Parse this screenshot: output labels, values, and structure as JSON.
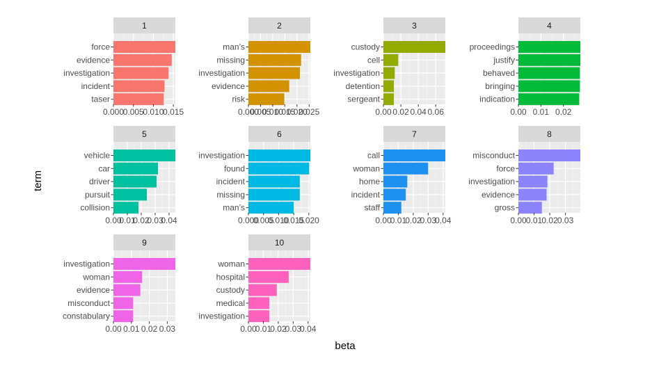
{
  "chart_data": {
    "type": "bar",
    "orientation": "horizontal",
    "layout": "facet_wrap 4 columns",
    "xlabel": "beta",
    "ylabel": "term",
    "grid": true,
    "legend": "none",
    "panels": [
      {
        "title": "1",
        "color": "#F8766D",
        "xlim": [
          0,
          0.0155
        ],
        "x_ticks": [
          0,
          0.005,
          0.01,
          0.015
        ],
        "x_tick_labels": [
          "0.000",
          "0.005",
          "0.010",
          "0.015"
        ],
        "terms": [
          "force",
          "evidence",
          "investigation",
          "incident",
          "taser"
        ],
        "values": [
          0.0155,
          0.0146,
          0.0138,
          0.0128,
          0.0126
        ]
      },
      {
        "title": "2",
        "color": "#D39200",
        "xlim": [
          0,
          0.0255
        ],
        "x_ticks": [
          0,
          0.005,
          0.01,
          0.015,
          0.02,
          0.025
        ],
        "x_tick_labels": [
          "0.000",
          "0.005",
          "0.010",
          "0.015",
          "0.020",
          "0.025"
        ],
        "terms": [
          "man’s",
          "missing",
          "investigation",
          "evidence",
          "risk"
        ],
        "values": [
          0.0258,
          0.0217,
          0.0212,
          0.0168,
          0.0148
        ]
      },
      {
        "title": "3",
        "color": "#93AA00",
        "xlim": [
          0,
          0.071
        ],
        "x_ticks": [
          0,
          0.02,
          0.04,
          0.06
        ],
        "x_tick_labels": [
          "0.00",
          "0.02",
          "0.04",
          "0.06"
        ],
        "terms": [
          "custody",
          "cell",
          "investigation",
          "detention",
          "sergeant"
        ],
        "values": [
          0.072,
          0.017,
          0.013,
          0.012,
          0.012
        ]
      },
      {
        "title": "4",
        "color": "#00BA38",
        "xlim": [
          0,
          0.0275
        ],
        "x_ticks": [
          0,
          0.01,
          0.02
        ],
        "x_tick_labels": [
          "0.00",
          "0.01",
          "0.02"
        ],
        "terms": [
          "proceedings",
          "justify",
          "behaved",
          "bringing",
          "indication"
        ],
        "values": [
          0.0277,
          0.0275,
          0.0273,
          0.0273,
          0.027
        ]
      },
      {
        "title": "5",
        "color": "#00C19F",
        "xlim": [
          0,
          0.0445
        ],
        "x_ticks": [
          0,
          0.01,
          0.02,
          0.03,
          0.04
        ],
        "x_tick_labels": [
          "0.00",
          "0.01",
          "0.02",
          "0.03",
          "0.04"
        ],
        "terms": [
          "vehicle",
          "car",
          "driver",
          "pursuit",
          "collision"
        ],
        "values": [
          0.045,
          0.032,
          0.031,
          0.024,
          0.018
        ]
      },
      {
        "title": "6",
        "color": "#00B9E3",
        "xlim": [
          0,
          0.0205
        ],
        "x_ticks": [
          0,
          0.005,
          0.01,
          0.015,
          0.02
        ],
        "x_tick_labels": [
          "0.000",
          "0.005",
          "0.010",
          "0.015",
          "0.020"
        ],
        "terms": [
          "investigation",
          "found",
          "incident",
          "missing",
          "man’s"
        ],
        "values": [
          0.0208,
          0.0201,
          0.017,
          0.017,
          0.015
        ]
      },
      {
        "title": "7",
        "color": "#1E90F0",
        "xlim": [
          0,
          0.0415
        ],
        "x_ticks": [
          0,
          0.01,
          0.02,
          0.03,
          0.04
        ],
        "x_tick_labels": [
          "0.00",
          "0.01",
          "0.02",
          "0.03",
          "0.04"
        ],
        "terms": [
          "call",
          "woman",
          "home",
          "incident",
          "staff"
        ],
        "values": [
          0.0415,
          0.03,
          0.016,
          0.015,
          0.012
        ]
      },
      {
        "title": "8",
        "color": "#8B84FC",
        "xlim": [
          0,
          0.0395
        ],
        "x_ticks": [
          0,
          0.01,
          0.02,
          0.03
        ],
        "x_tick_labels": [
          "0.00",
          "0.01",
          "0.02",
          "0.03"
        ],
        "terms": [
          "misconduct",
          "force",
          "investigation",
          "evidence",
          "gross"
        ],
        "values": [
          0.04,
          0.0225,
          0.0185,
          0.018,
          0.015
        ]
      },
      {
        "title": "9",
        "color": "#F064E8",
        "xlim": [
          0,
          0.0345
        ],
        "x_ticks": [
          0,
          0.01,
          0.02,
          0.03
        ],
        "x_tick_labels": [
          "0.00",
          "0.01",
          "0.02",
          "0.03"
        ],
        "terms": [
          "investigation",
          "woman",
          "evidence",
          "misconduct",
          "constabulary"
        ],
        "values": [
          0.035,
          0.016,
          0.015,
          0.011,
          0.011
        ]
      },
      {
        "title": "10",
        "color": "#FF62BC",
        "xlim": [
          0,
          0.0415
        ],
        "x_ticks": [
          0,
          0.01,
          0.02,
          0.03,
          0.04
        ],
        "x_tick_labels": [
          "0.00",
          "0.01",
          "0.02",
          "0.03",
          "0.04"
        ],
        "terms": [
          "woman",
          "hospital",
          "custody",
          "medical",
          "investigation"
        ],
        "values": [
          0.0415,
          0.027,
          0.019,
          0.014,
          0.014
        ]
      }
    ]
  }
}
